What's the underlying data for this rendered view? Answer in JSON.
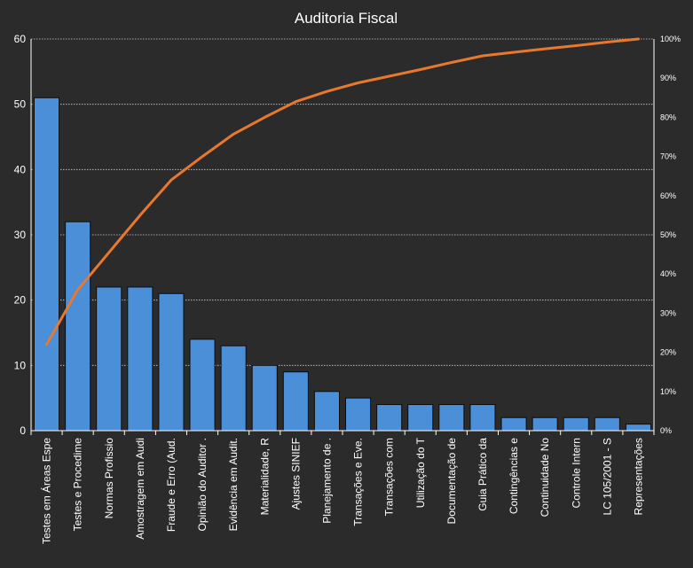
{
  "chart_data": {
    "type": "bar",
    "title": "Auditoria Fiscal",
    "xlabel": "",
    "ylabel": "",
    "ylim": [
      0,
      60
    ],
    "y_ticks": [
      "0",
      "10",
      "20",
      "30",
      "40",
      "50",
      "60"
    ],
    "y2lim": [
      0,
      100
    ],
    "y2_ticks": [
      "0%",
      "10%",
      "20%",
      "30%",
      "40%",
      "50%",
      "60%",
      "70%",
      "80%",
      "90%",
      "100%"
    ],
    "grid": true,
    "legend": "none",
    "categories": [
      "Testes em Áreas Espe",
      "Testes e Procedime",
      "Normas Profissio",
      "Amostragem em Audi",
      "Fraude e Erro (Aud.",
      "Opinião do Auditor .",
      "Evidência em Audit.",
      "Materialidade, R",
      "Ajustes SINIEF",
      "Planejamento de .",
      "Transações e Eve.",
      "Transações com",
      "Utilização do T",
      "Documentação de",
      "Guia Prático da",
      "Contingências e",
      "Continuidade No",
      "Controle Intern",
      "LC 105/2001 - S",
      "Representações"
    ],
    "series": [
      {
        "type": "bar",
        "axis": "primary",
        "values": [
          51,
          32,
          22,
          22,
          21,
          14,
          13,
          10,
          9,
          6,
          5,
          4,
          4,
          4,
          4,
          2,
          2,
          2,
          2,
          1
        ]
      },
      {
        "type": "line",
        "axis": "secondary",
        "values": [
          22,
          36,
          45.5,
          55,
          64,
          70,
          75.7,
          80,
          84,
          86.6,
          88.8,
          90.5,
          92.2,
          94,
          95.7,
          96.6,
          97.5,
          98.3,
          99.2,
          100
        ]
      }
    ],
    "colors": {
      "background": "#2b2b2b",
      "bar_fill": "#4a8fd8",
      "bar_stroke": "#0d0d0d",
      "line": "#e8782c",
      "grid": "#d0d0d0",
      "text": "#ffffff"
    }
  }
}
